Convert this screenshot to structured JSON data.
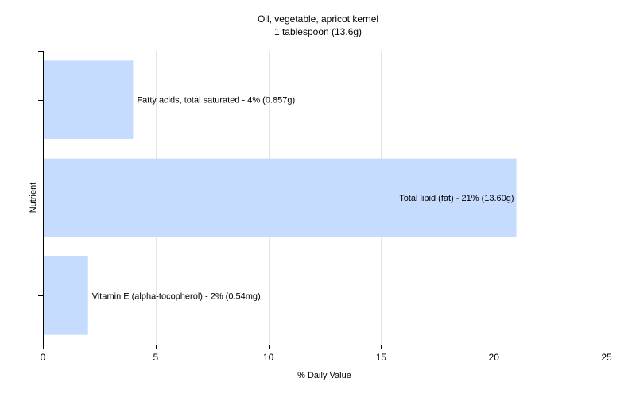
{
  "chart_data": {
    "type": "bar",
    "orientation": "horizontal",
    "title": "Oil, vegetable, apricot kernel",
    "subtitle": "1 tablespoon (13.6g)",
    "xlabel": "% Daily Value",
    "ylabel": "Nutrient",
    "xlim": [
      0,
      25
    ],
    "xticks": [
      0,
      5,
      10,
      15,
      20,
      25
    ],
    "grid": true,
    "bar_color": "#c6dcff",
    "categories": [
      "Fatty acids, total saturated",
      "Total lipid (fat)",
      "Vitamin E (alpha-tocopherol)"
    ],
    "values": [
      4,
      21,
      2
    ],
    "bar_labels": [
      "Fatty acids, total saturated - 4% (0.857g)",
      "Total lipid (fat) - 21% (13.60g)",
      "Vitamin E (alpha-tocopherol) - 2% (0.54mg)"
    ]
  }
}
